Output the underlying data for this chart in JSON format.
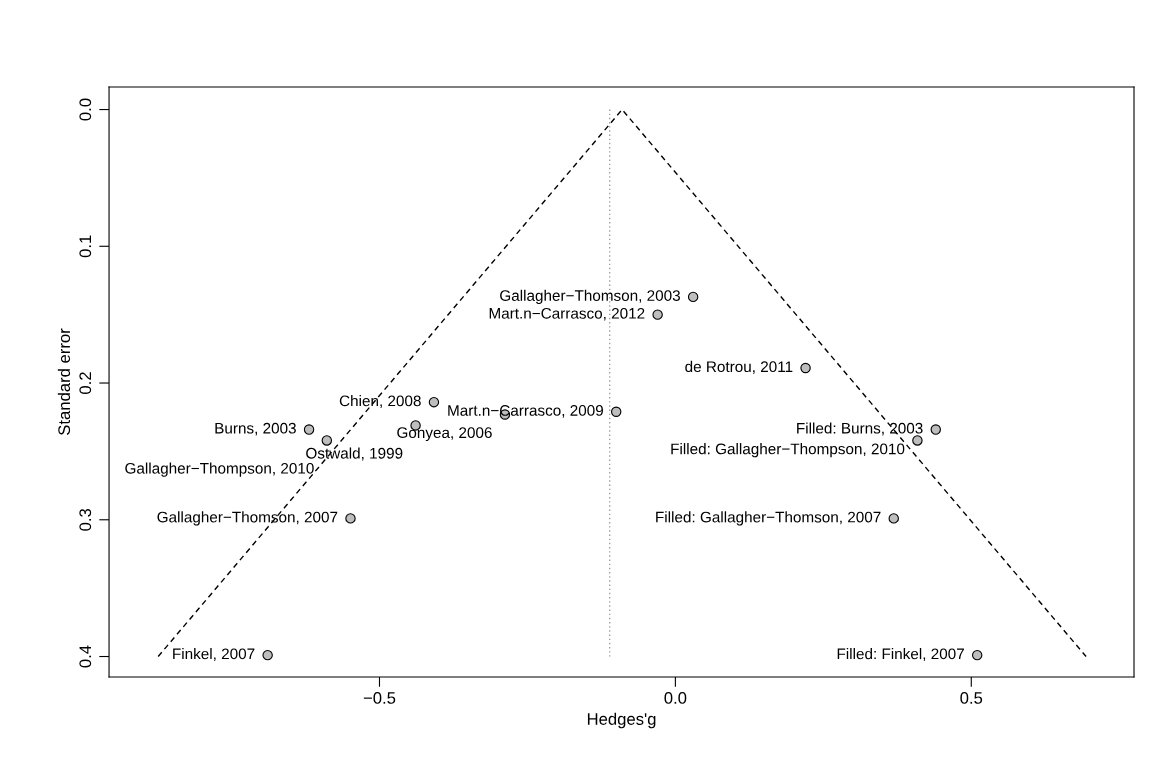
{
  "chart_data": {
    "type": "scatter",
    "xlabel": "Hedges'g",
    "ylabel": "Standard error",
    "xlim": [
      -0.957,
      0.775
    ],
    "ylim": [
      0.415,
      -0.0165
    ],
    "xticks": [
      {
        "value": -0.5,
        "label": "−0.5"
      },
      {
        "value": 0,
        "label": "0.0"
      },
      {
        "value": 0.5,
        "label": "0.5"
      }
    ],
    "yticks": [
      {
        "value": 0,
        "label": "0.0"
      },
      {
        "value": 0.1,
        "label": "0.1"
      },
      {
        "value": 0.2,
        "label": "0.2"
      },
      {
        "value": 0.3,
        "label": "0.3"
      },
      {
        "value": 0.4,
        "label": "0.4"
      }
    ],
    "grid": false,
    "legend": false,
    "series": [
      {
        "type": "line",
        "color": "#000000",
        "line_style": "dashed",
        "marker": "none",
        "x": [
          -0.874,
          -0.09,
          0.694
        ],
        "values": [
          0.4,
          0,
          0.4
        ]
      },
      {
        "type": "line",
        "color": "#a0a0a0",
        "line_style": "dotted",
        "marker": "none",
        "x": [
          -0.111,
          -0.111
        ],
        "values": [
          0,
          0.4
        ]
      },
      {
        "color": "#bebebe",
        "marker": "circle",
        "x": [
          0.03,
          -0.03,
          0.22,
          -0.408,
          -0.1,
          -0.288,
          -0.439,
          -0.619,
          -0.589,
          -0.549,
          -0.689,
          0.44,
          0.409,
          0.369,
          0.51
        ],
        "values": [
          0.137,
          0.15,
          0.189,
          0.214,
          0.221,
          0.223,
          0.231,
          0.234,
          0.242,
          0.299,
          0.399,
          0.234,
          0.242,
          0.299,
          0.399
        ]
      }
    ],
    "annotations": [
      {
        "text": "Gallagher−Thomson, 2003",
        "x": 0.03,
        "y": 0.137
      },
      {
        "text": "Mart.n−Carrasco, 2012",
        "x": -0.03,
        "y": 0.15
      },
      {
        "text": "de Rotrou, 2011",
        "x": 0.22,
        "y": 0.189
      },
      {
        "text": "Chien, 2008",
        "x": -0.408,
        "y": 0.214
      },
      {
        "text": "Mart.n−Carrasco, 2009",
        "x": -0.1,
        "y": 0.221
      },
      {
        "text": "Gonyea, 2006",
        "x": -0.288,
        "y": 0.223
      },
      {
        "text": "Ostwald, 1999",
        "x": -0.439,
        "y": 0.231
      },
      {
        "text": "Burns, 2003",
        "x": -0.619,
        "y": 0.234
      },
      {
        "text": "Gallagher−Thompson, 2010",
        "x": -0.589,
        "y": 0.242
      },
      {
        "text": "Gallagher−Thomson, 2007",
        "x": -0.549,
        "y": 0.299
      },
      {
        "text": "Finkel, 2007",
        "x": -0.689,
        "y": 0.399
      },
      {
        "text": "Filled: Burns, 2003",
        "x": 0.44,
        "y": 0.234
      },
      {
        "text": "Filled: Gallagher−Thompson, 2010",
        "x": 0.409,
        "y": 0.242
      },
      {
        "text": "Filled: Gallagher−Thomson, 2007",
        "x": 0.369,
        "y": 0.299
      },
      {
        "text": "Filled: Finkel, 2007",
        "x": 0.51,
        "y": 0.399
      }
    ]
  }
}
